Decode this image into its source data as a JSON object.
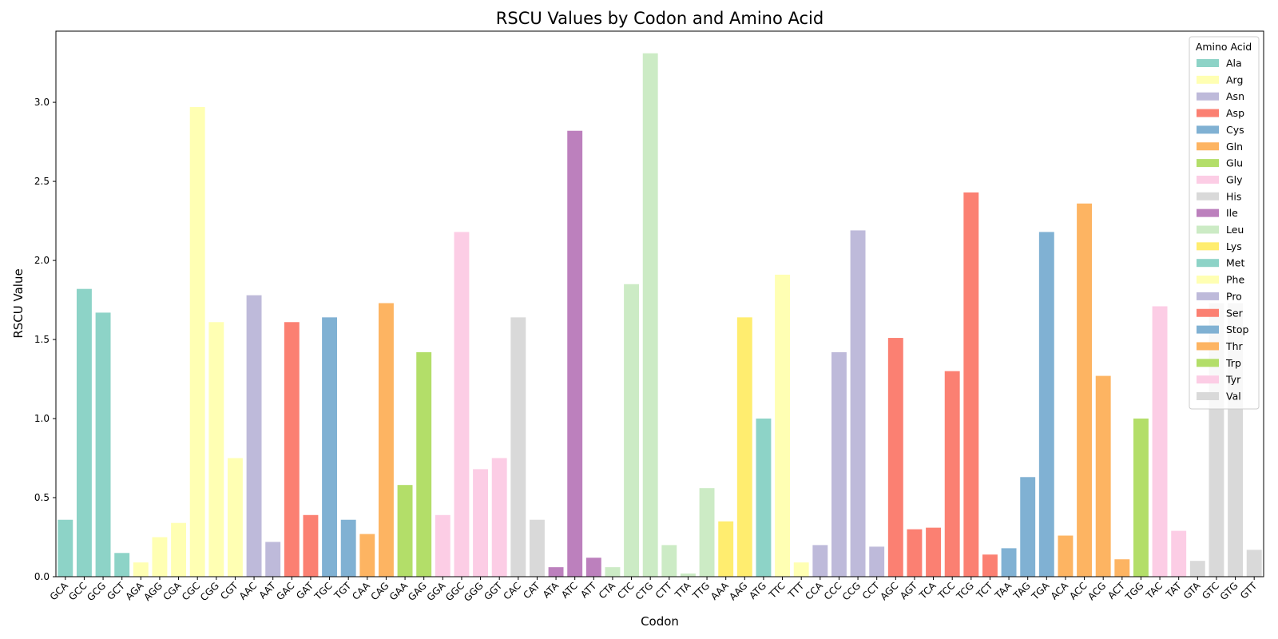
{
  "chart_data": {
    "type": "bar",
    "title": "RSCU Values by Codon and Amino Acid",
    "xlabel": "Codon",
    "ylabel": "RSCU Value",
    "ylim": [
      0,
      3.45
    ],
    "yticks": [
      "0.0",
      "0.5",
      "1.0",
      "1.5",
      "2.0",
      "2.5",
      "3.0"
    ],
    "grid": false,
    "legend": {
      "title": "Amino Acid",
      "placement": "top-right",
      "entries": [
        {
          "name": "Ala",
          "color": "#8dd3c7"
        },
        {
          "name": "Arg",
          "color": "#ffffb3"
        },
        {
          "name": "Asn",
          "color": "#bebada"
        },
        {
          "name": "Asp",
          "color": "#fb8072"
        },
        {
          "name": "Cys",
          "color": "#80b1d3"
        },
        {
          "name": "Gln",
          "color": "#fdb462"
        },
        {
          "name": "Glu",
          "color": "#b3de69"
        },
        {
          "name": "Gly",
          "color": "#fccde5"
        },
        {
          "name": "His",
          "color": "#d9d9d9"
        },
        {
          "name": "Ile",
          "color": "#bc80bd"
        },
        {
          "name": "Leu",
          "color": "#ccebc5"
        },
        {
          "name": "Lys",
          "color": "#ffed6f"
        },
        {
          "name": "Met",
          "color": "#8dd3c7"
        },
        {
          "name": "Phe",
          "color": "#ffffb3"
        },
        {
          "name": "Pro",
          "color": "#bebada"
        },
        {
          "name": "Ser",
          "color": "#fb8072"
        },
        {
          "name": "Stop",
          "color": "#80b1d3"
        },
        {
          "name": "Thr",
          "color": "#fdb462"
        },
        {
          "name": "Trp",
          "color": "#b3de69"
        },
        {
          "name": "Tyr",
          "color": "#fccde5"
        },
        {
          "name": "Val",
          "color": "#d9d9d9"
        }
      ]
    },
    "bars": [
      {
        "codon": "GCA",
        "aa": "Ala",
        "value": 0.36
      },
      {
        "codon": "GCC",
        "aa": "Ala",
        "value": 1.82
      },
      {
        "codon": "GCG",
        "aa": "Ala",
        "value": 1.67
      },
      {
        "codon": "GCT",
        "aa": "Ala",
        "value": 0.15
      },
      {
        "codon": "AGA",
        "aa": "Arg",
        "value": 0.09
      },
      {
        "codon": "AGG",
        "aa": "Arg",
        "value": 0.25
      },
      {
        "codon": "CGA",
        "aa": "Arg",
        "value": 0.34
      },
      {
        "codon": "CGC",
        "aa": "Arg",
        "value": 2.97
      },
      {
        "codon": "CGG",
        "aa": "Arg",
        "value": 1.61
      },
      {
        "codon": "CGT",
        "aa": "Arg",
        "value": 0.75
      },
      {
        "codon": "AAC",
        "aa": "Asn",
        "value": 1.78
      },
      {
        "codon": "AAT",
        "aa": "Asn",
        "value": 0.22
      },
      {
        "codon": "GAC",
        "aa": "Asp",
        "value": 1.61
      },
      {
        "codon": "GAT",
        "aa": "Asp",
        "value": 0.39
      },
      {
        "codon": "TGC",
        "aa": "Cys",
        "value": 1.64
      },
      {
        "codon": "TGT",
        "aa": "Cys",
        "value": 0.36
      },
      {
        "codon": "CAA",
        "aa": "Gln",
        "value": 0.27
      },
      {
        "codon": "CAG",
        "aa": "Gln",
        "value": 1.73
      },
      {
        "codon": "GAA",
        "aa": "Glu",
        "value": 0.58
      },
      {
        "codon": "GAG",
        "aa": "Glu",
        "value": 1.42
      },
      {
        "codon": "GGA",
        "aa": "Gly",
        "value": 0.39
      },
      {
        "codon": "GGC",
        "aa": "Gly",
        "value": 2.18
      },
      {
        "codon": "GGG",
        "aa": "Gly",
        "value": 0.68
      },
      {
        "codon": "GGT",
        "aa": "Gly",
        "value": 0.75
      },
      {
        "codon": "CAC",
        "aa": "His",
        "value": 1.64
      },
      {
        "codon": "CAT",
        "aa": "His",
        "value": 0.36
      },
      {
        "codon": "ATA",
        "aa": "Ile",
        "value": 0.06
      },
      {
        "codon": "ATC",
        "aa": "Ile",
        "value": 2.82
      },
      {
        "codon": "ATT",
        "aa": "Ile",
        "value": 0.12
      },
      {
        "codon": "CTA",
        "aa": "Leu",
        "value": 0.06
      },
      {
        "codon": "CTC",
        "aa": "Leu",
        "value": 1.85
      },
      {
        "codon": "CTG",
        "aa": "Leu",
        "value": 3.31
      },
      {
        "codon": "CTT",
        "aa": "Leu",
        "value": 0.2
      },
      {
        "codon": "TTA",
        "aa": "Leu",
        "value": 0.02
      },
      {
        "codon": "TTG",
        "aa": "Leu",
        "value": 0.56
      },
      {
        "codon": "AAA",
        "aa": "Lys",
        "value": 0.35
      },
      {
        "codon": "AAG",
        "aa": "Lys",
        "value": 1.64
      },
      {
        "codon": "ATG",
        "aa": "Met",
        "value": 1.0
      },
      {
        "codon": "TTC",
        "aa": "Phe",
        "value": 1.91
      },
      {
        "codon": "TTT",
        "aa": "Phe",
        "value": 0.09
      },
      {
        "codon": "CCA",
        "aa": "Pro",
        "value": 0.2
      },
      {
        "codon": "CCC",
        "aa": "Pro",
        "value": 1.42
      },
      {
        "codon": "CCG",
        "aa": "Pro",
        "value": 2.19
      },
      {
        "codon": "CCT",
        "aa": "Pro",
        "value": 0.19
      },
      {
        "codon": "AGC",
        "aa": "Ser",
        "value": 1.51
      },
      {
        "codon": "AGT",
        "aa": "Ser",
        "value": 0.3
      },
      {
        "codon": "TCA",
        "aa": "Ser",
        "value": 0.31
      },
      {
        "codon": "TCC",
        "aa": "Ser",
        "value": 1.3
      },
      {
        "codon": "TCG",
        "aa": "Ser",
        "value": 2.43
      },
      {
        "codon": "TCT",
        "aa": "Ser",
        "value": 0.14
      },
      {
        "codon": "TAA",
        "aa": "Stop",
        "value": 0.18
      },
      {
        "codon": "TAG",
        "aa": "Stop",
        "value": 0.63
      },
      {
        "codon": "TGA",
        "aa": "Stop",
        "value": 2.18
      },
      {
        "codon": "ACA",
        "aa": "Thr",
        "value": 0.26
      },
      {
        "codon": "ACC",
        "aa": "Thr",
        "value": 2.36
      },
      {
        "codon": "ACG",
        "aa": "Thr",
        "value": 1.27
      },
      {
        "codon": "ACT",
        "aa": "Thr",
        "value": 0.11
      },
      {
        "codon": "TGG",
        "aa": "Trp",
        "value": 1.0
      },
      {
        "codon": "TAC",
        "aa": "Tyr",
        "value": 1.71
      },
      {
        "codon": "TAT",
        "aa": "Tyr",
        "value": 0.29
      },
      {
        "codon": "GTA",
        "aa": "Val",
        "value": 0.1
      },
      {
        "codon": "GTC",
        "aa": "Val",
        "value": 1.73
      },
      {
        "codon": "GTG",
        "aa": "Val",
        "value": 1.73
      },
      {
        "codon": "GTT",
        "aa": "Val",
        "value": 0.17
      }
    ]
  }
}
